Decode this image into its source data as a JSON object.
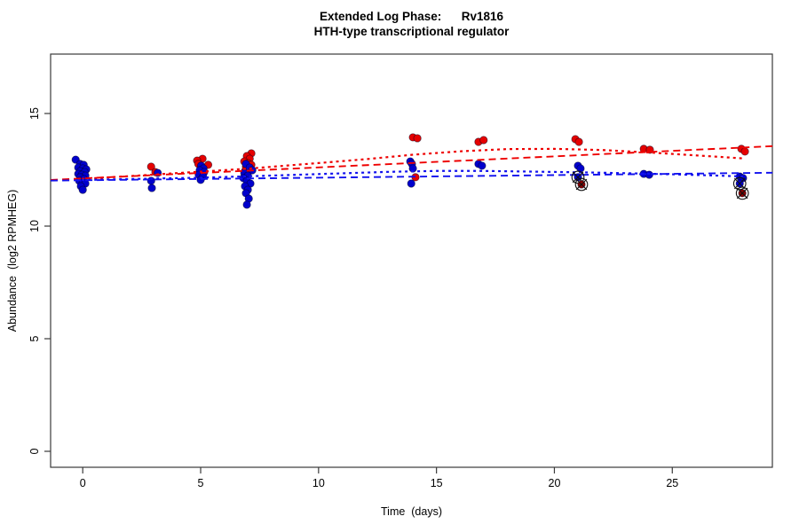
{
  "figure": {
    "title_line1": "Extended Log Phase:      Rv1816",
    "title_line2": "HTH-type transcriptional regulator",
    "xlabel": "Time  (days)",
    "ylabel": "Abundance  (log2 RPMHEG)"
  },
  "colors": {
    "red_points": "#e60000",
    "blue_points": "#0000cd",
    "darkred_flagged": "#8b0000",
    "red_line": "#ee0000",
    "blue_line": "#1111ee",
    "flag_marker": "#111111",
    "axis": "#3a3a3a"
  },
  "chart_data": {
    "type": "scatter",
    "title": "Extended Log Phase: Rv1816 — HTH-type transcriptional regulator",
    "xlabel": "Time (days)",
    "ylabel": "Abundance (log2 RPMHEG)",
    "xlim": [
      -1.36,
      29.25
    ],
    "ylim": [
      -0.71,
      17.64
    ],
    "x_ticks": [
      0,
      5,
      10,
      15,
      20,
      25
    ],
    "y_ticks": [
      0,
      5,
      10,
      15
    ],
    "grid": false,
    "legend": "none",
    "series": [
      {
        "name": "red-condition",
        "marker": "circle",
        "color_key": "red_points",
        "points": [
          [
            2.9,
            12.64
          ],
          [
            3.08,
            12.4
          ],
          [
            5.08,
            12.99
          ],
          [
            4.85,
            12.91
          ],
          [
            4.9,
            12.76
          ],
          [
            5.32,
            12.72
          ],
          [
            7.15,
            13.23
          ],
          [
            6.96,
            13.11
          ],
          [
            7.08,
            12.99
          ],
          [
            6.85,
            12.87
          ],
          [
            7.0,
            12.79
          ],
          [
            7.15,
            12.72
          ],
          [
            6.92,
            12.64
          ],
          [
            7.08,
            12.52
          ],
          [
            6.88,
            12.44
          ],
          [
            14.0,
            13.94
          ],
          [
            14.19,
            13.9
          ],
          [
            14.11,
            12.17
          ],
          [
            16.78,
            13.74
          ],
          [
            17.0,
            13.82
          ],
          [
            20.89,
            13.86
          ],
          [
            21.04,
            13.74
          ],
          [
            23.79,
            13.43
          ],
          [
            24.05,
            13.39
          ],
          [
            27.93,
            13.43
          ],
          [
            28.08,
            13.31
          ]
        ]
      },
      {
        "name": "blue-condition",
        "marker": "circle",
        "color_key": "blue_points",
        "points": [
          [
            -0.3,
            12.95
          ],
          [
            -0.11,
            12.76
          ],
          [
            0.04,
            12.72
          ],
          [
            -0.19,
            12.6
          ],
          [
            0.0,
            12.56
          ],
          [
            0.15,
            12.52
          ],
          [
            -0.11,
            12.44
          ],
          [
            0.08,
            12.4
          ],
          [
            -0.19,
            12.32
          ],
          [
            -0.04,
            12.28
          ],
          [
            0.11,
            12.24
          ],
          [
            -0.11,
            12.17
          ],
          [
            0.04,
            12.09
          ],
          [
            -0.15,
            12.01
          ],
          [
            0.0,
            11.93
          ],
          [
            0.11,
            11.89
          ],
          [
            -0.08,
            11.77
          ],
          [
            0.0,
            11.61
          ],
          [
            3.18,
            12.36
          ],
          [
            2.9,
            12.01
          ],
          [
            2.93,
            11.69
          ],
          [
            5.02,
            12.68
          ],
          [
            5.12,
            12.56
          ],
          [
            4.96,
            12.48
          ],
          [
            5.15,
            12.4
          ],
          [
            4.92,
            12.28
          ],
          [
            5.1,
            12.2
          ],
          [
            5.0,
            12.05
          ],
          [
            6.92,
            12.76
          ],
          [
            7.08,
            12.6
          ],
          [
            7.19,
            12.48
          ],
          [
            6.85,
            12.36
          ],
          [
            7.0,
            12.24
          ],
          [
            6.81,
            12.13
          ],
          [
            6.96,
            12.01
          ],
          [
            7.11,
            11.89
          ],
          [
            6.88,
            11.77
          ],
          [
            7.0,
            11.61
          ],
          [
            6.92,
            11.46
          ],
          [
            7.04,
            11.22
          ],
          [
            6.96,
            10.95
          ],
          [
            13.89,
            12.87
          ],
          [
            13.96,
            12.76
          ],
          [
            14.0,
            12.56
          ],
          [
            13.93,
            11.89
          ],
          [
            16.78,
            12.76
          ],
          [
            16.93,
            12.68
          ],
          [
            21.0,
            12.68
          ],
          [
            21.11,
            12.56
          ],
          [
            23.79,
            12.32
          ],
          [
            24.02,
            12.28
          ],
          [
            27.86,
            12.2
          ],
          [
            28.0,
            12.13
          ]
        ]
      },
      {
        "name": "flagged-blue-outliers",
        "marker": "circle-x",
        "color_key": "blue_points",
        "points": [
          [
            21.0,
            12.17
          ],
          [
            27.86,
            11.89
          ]
        ]
      },
      {
        "name": "flagged-darkred-outliers",
        "marker": "circle-x",
        "color_key": "darkred_flagged",
        "points": [
          [
            21.15,
            11.85
          ],
          [
            27.97,
            11.46
          ]
        ]
      }
    ],
    "fit_lines": [
      {
        "name": "red-linear-fit",
        "style": "longdash",
        "color_key": "red_line",
        "points": [
          [
            -1.36,
            12.05
          ],
          [
            29.25,
            13.55
          ]
        ]
      },
      {
        "name": "blue-linear-fit",
        "style": "longdash",
        "color_key": "blue_line",
        "points": [
          [
            -1.36,
            12.02
          ],
          [
            29.25,
            12.37
          ]
        ]
      },
      {
        "name": "red-smooth-fit",
        "style": "dotted",
        "color_key": "red_line",
        "points": [
          [
            -0.3,
            12.08
          ],
          [
            2,
            12.22
          ],
          [
            5,
            12.42
          ],
          [
            7,
            12.55
          ],
          [
            10,
            12.8
          ],
          [
            12,
            12.97
          ],
          [
            14,
            13.17
          ],
          [
            16,
            13.32
          ],
          [
            18,
            13.42
          ],
          [
            20,
            13.43
          ],
          [
            22,
            13.38
          ],
          [
            24,
            13.27
          ],
          [
            26,
            13.14
          ],
          [
            28.1,
            13.0
          ]
        ]
      },
      {
        "name": "blue-smooth-fit",
        "style": "dotted",
        "color_key": "blue_line",
        "points": [
          [
            -0.3,
            12.04
          ],
          [
            2,
            12.09
          ],
          [
            5,
            12.15
          ],
          [
            7,
            12.21
          ],
          [
            10,
            12.31
          ],
          [
            13,
            12.41
          ],
          [
            15,
            12.45
          ],
          [
            17,
            12.45
          ],
          [
            19,
            12.42
          ],
          [
            21,
            12.39
          ],
          [
            23,
            12.35
          ],
          [
            25,
            12.3
          ],
          [
            27,
            12.24
          ],
          [
            28.1,
            12.2
          ]
        ]
      }
    ]
  }
}
